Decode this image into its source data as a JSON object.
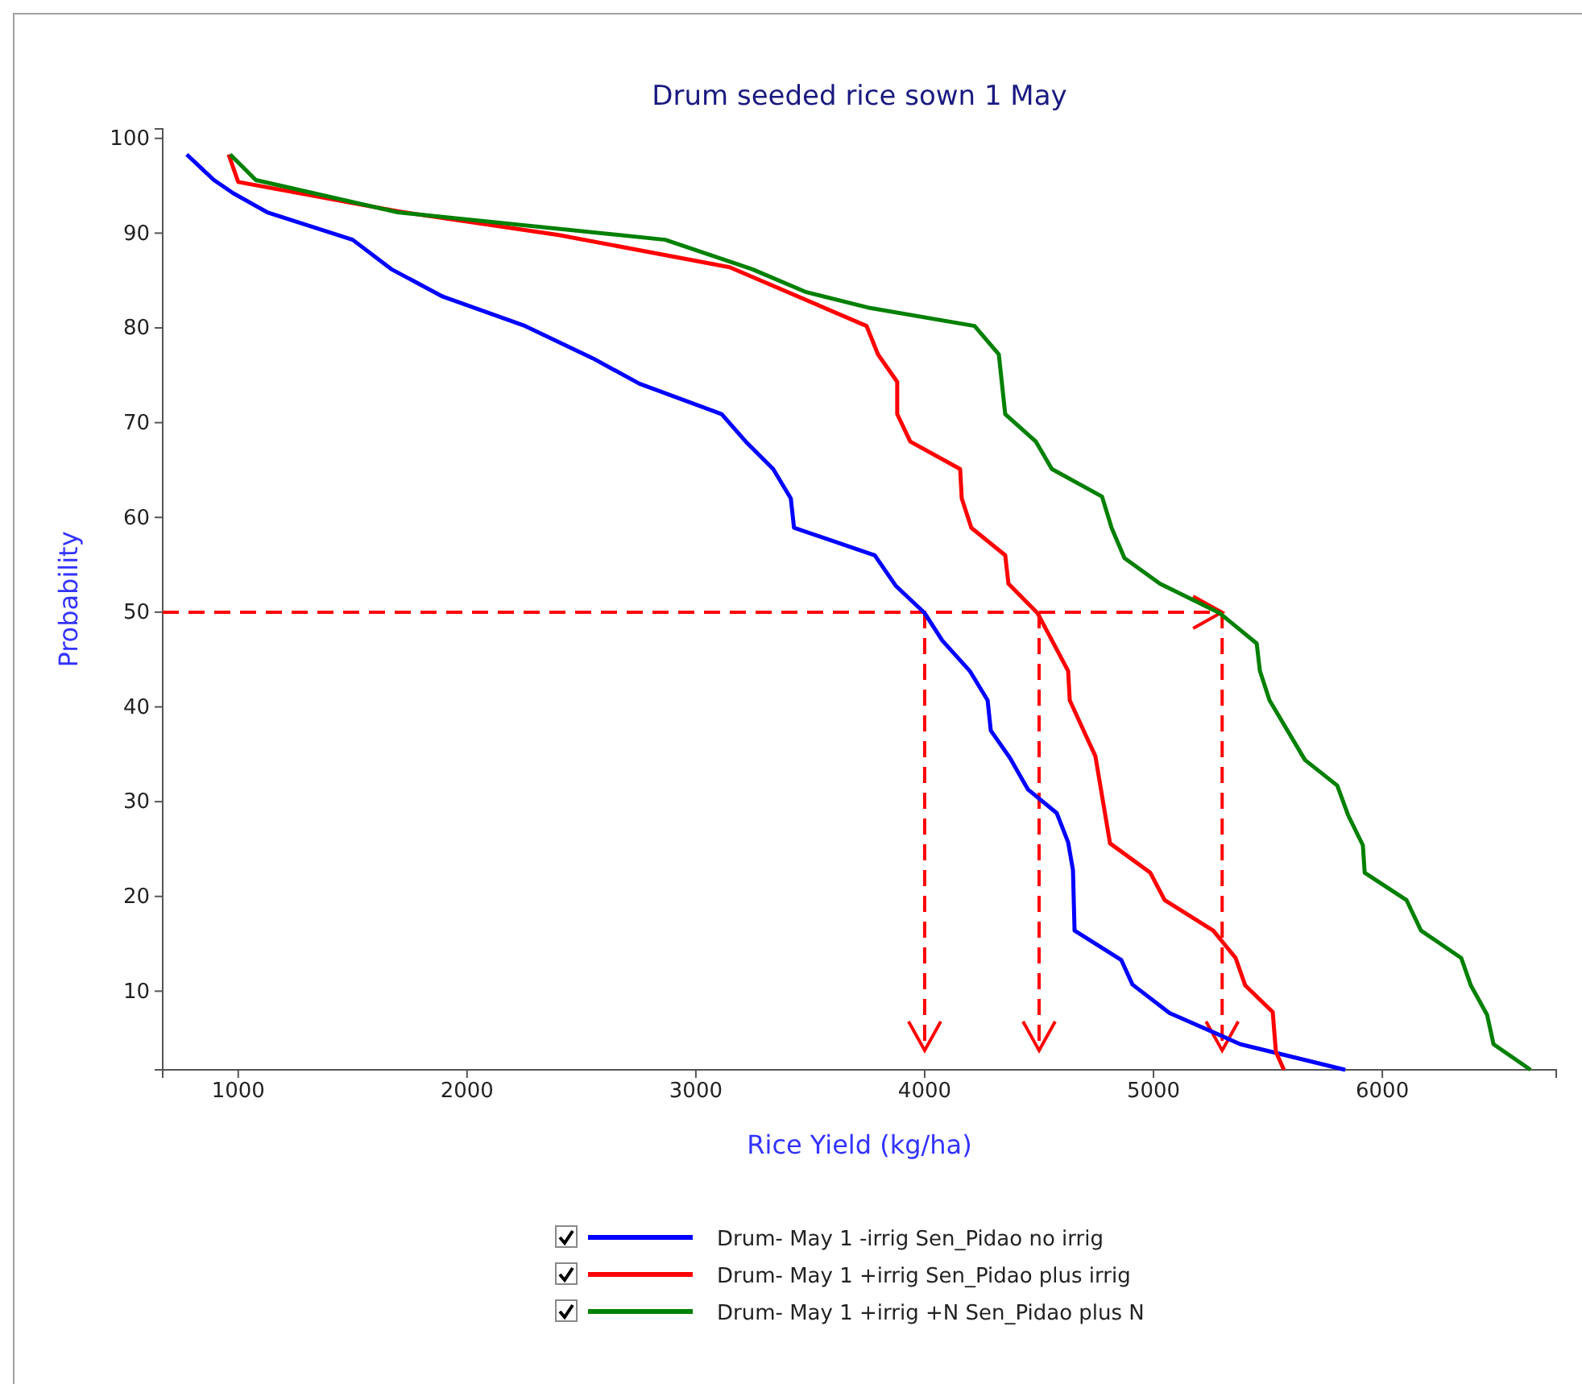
{
  "chart_data": {
    "type": "line",
    "title": "Drum seeded rice sown 1 May",
    "xlabel": "Rice Yield (kg/ha)",
    "ylabel": "Probability",
    "xlim": [
      670,
      6760
    ],
    "ylim": [
      1.7,
      101
    ],
    "xticks": [
      1000,
      2000,
      3000,
      4000,
      5000,
      6000
    ],
    "yticks": [
      10,
      20,
      30,
      40,
      50,
      60,
      70,
      80,
      90,
      100
    ],
    "grid": false,
    "legend": "bottom",
    "marker": "none",
    "line_style": "solid",
    "series": [
      {
        "name": "Drum- May 1 -irrig Sen_Pidao no irrig",
        "color": "#0000ff",
        "x": [
          775,
          894,
          979,
          1127,
          1500,
          1669,
          1894,
          2254,
          2549,
          2754,
          3113,
          3218,
          3338,
          3415,
          3429,
          3782,
          3873,
          4000,
          4077,
          4197,
          4275,
          4289,
          4373,
          4451,
          4577,
          4627,
          4648,
          4655,
          4859,
          4908,
          5070,
          5380,
          5838
        ],
        "values": [
          98.3,
          95.6,
          94.2,
          92.2,
          89.3,
          86.2,
          83.3,
          80.2,
          76.8,
          74.1,
          70.9,
          68.0,
          65.1,
          62.0,
          58.9,
          56.0,
          52.8,
          49.9,
          47.0,
          43.8,
          40.7,
          37.5,
          34.6,
          31.3,
          28.8,
          25.7,
          22.8,
          16.4,
          13.3,
          10.7,
          7.7,
          4.4,
          1.7
        ]
      },
      {
        "name": "Drum- May 1 +irrig Sen_Pidao plus irrig",
        "color": "#ff0000",
        "x": [
          958,
          1000,
          1697,
          2401,
          3148,
          3746,
          3796,
          3880,
          3880,
          3937,
          4155,
          4162,
          4204,
          4352,
          4366,
          4493,
          4627,
          4634,
          4704,
          4746,
          4810,
          4986,
          5049,
          5261,
          5359,
          5401,
          5521,
          5535,
          5570
        ],
        "values": [
          98.3,
          95.4,
          92.3,
          89.8,
          86.4,
          80.2,
          77.2,
          74.3,
          70.9,
          68.0,
          65.1,
          62.0,
          58.9,
          56.0,
          53.0,
          49.9,
          43.8,
          40.7,
          37.0,
          34.8,
          25.6,
          22.5,
          19.6,
          16.4,
          13.5,
          10.6,
          7.8,
          3.6,
          1.7
        ]
      },
      {
        "name": "Drum- May 1 +irrig +N Sen_Pidao plus N",
        "color": "#008000",
        "x": [
          965,
          1077,
          1697,
          2866,
          3246,
          3479,
          3761,
          4218,
          4324,
          4352,
          4486,
          4556,
          4775,
          4817,
          4873,
          5028,
          5289,
          5451,
          5465,
          5507,
          5662,
          5803,
          5852,
          5915,
          5923,
          6106,
          6169,
          6345,
          6387,
          6458,
          6486,
          6648
        ],
        "values": [
          98.3,
          95.6,
          92.2,
          89.3,
          86.2,
          83.8,
          82.1,
          80.2,
          77.2,
          70.9,
          68.0,
          65.1,
          62.2,
          58.9,
          55.7,
          53.0,
          49.9,
          46.7,
          43.8,
          40.7,
          34.4,
          31.7,
          28.5,
          25.4,
          22.5,
          19.6,
          16.4,
          13.5,
          10.6,
          7.5,
          4.4,
          1.7
        ]
      }
    ],
    "ref_lines": [
      {
        "axis": "y",
        "value": 50,
        "color": "#ff0000",
        "line_style": "dashed"
      },
      {
        "axis": "x",
        "value": 4000,
        "color": "#ff0000",
        "line_style": "dashed"
      },
      {
        "axis": "x",
        "value": 4500,
        "color": "#ff0000",
        "line_style": "dashed"
      },
      {
        "axis": "x",
        "value": 5300,
        "color": "#ff0000",
        "line_style": "dashed"
      }
    ]
  }
}
